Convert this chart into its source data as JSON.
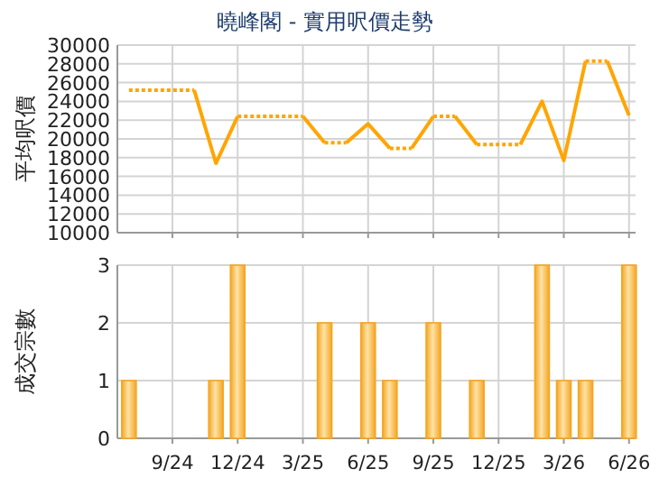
{
  "chart_data": [
    {
      "type": "line",
      "title": "曉峰閣 - 實用呎價走勢",
      "ylabel": "平均呎價",
      "xlim": [
        "2024-06-15",
        "2026-06-10"
      ],
      "ylim": [
        10000,
        30000
      ],
      "yticks": [
        10000,
        12000,
        14000,
        16000,
        18000,
        20000,
        22000,
        24000,
        26000,
        28000,
        30000
      ],
      "xticks": [
        {
          "value": "2024-09",
          "label": null
        },
        {
          "value": "2024-12",
          "label": null
        },
        {
          "value": "2025-03",
          "label": null
        },
        {
          "value": "2025-06",
          "label": null
        },
        {
          "value": "2025-09",
          "label": null
        },
        {
          "value": "2025-12",
          "label": null
        },
        {
          "value": "2026-03",
          "label": null
        },
        {
          "value": "2026-06",
          "label": null
        }
      ],
      "tick_labels": "y",
      "grid": true,
      "series": [
        {
          "color": "#ffa500",
          "line_style": "dotted",
          "x": [
            "2024-07",
            "2024-10"
          ],
          "values": [
            25200,
            25200
          ]
        },
        {
          "color": "#ffa500",
          "line_style": "solid",
          "x": [
            "2024-10",
            "2024-11",
            "2024-12"
          ],
          "values": [
            25200,
            17400,
            22400
          ]
        },
        {
          "color": "#ffa500",
          "line_style": "dotted",
          "x": [
            "2024-12",
            "2025-03"
          ],
          "values": [
            22400,
            22400
          ]
        },
        {
          "color": "#ffa500",
          "line_style": "solid",
          "x": [
            "2025-03",
            "2025-04"
          ],
          "values": [
            22400,
            19600
          ]
        },
        {
          "color": "#ffa500",
          "line_style": "dotted",
          "x": [
            "2025-04",
            "2025-05"
          ],
          "values": [
            19600,
            19600
          ]
        },
        {
          "color": "#ffa500",
          "line_style": "solid",
          "x": [
            "2025-05",
            "2025-06",
            "2025-07"
          ],
          "values": [
            19600,
            21600,
            19000
          ]
        },
        {
          "color": "#ffa500",
          "line_style": "dotted",
          "x": [
            "2025-07",
            "2025-08"
          ],
          "values": [
            19000,
            19000
          ]
        },
        {
          "color": "#ffa500",
          "line_style": "solid",
          "x": [
            "2025-08",
            "2025-09"
          ],
          "values": [
            19000,
            22400
          ]
        },
        {
          "color": "#ffa500",
          "line_style": "dotted",
          "x": [
            "2025-09",
            "2025-10"
          ],
          "values": [
            22400,
            22400
          ]
        },
        {
          "color": "#ffa500",
          "line_style": "solid",
          "x": [
            "2025-10",
            "2025-11"
          ],
          "values": [
            22400,
            19400
          ]
        },
        {
          "color": "#ffa500",
          "line_style": "dotted",
          "x": [
            "2025-11",
            "2026-01"
          ],
          "values": [
            19400,
            19400
          ]
        },
        {
          "color": "#ffa500",
          "line_style": "solid",
          "x": [
            "2026-01",
            "2026-02",
            "2026-03",
            "2026-04"
          ],
          "values": [
            19400,
            24000,
            17700,
            28300
          ]
        },
        {
          "color": "#ffa500",
          "line_style": "dotted",
          "x": [
            "2026-04",
            "2026-05"
          ],
          "values": [
            28300,
            28300
          ]
        },
        {
          "color": "#ffa500",
          "line_style": "solid",
          "x": [
            "2026-05",
            "2026-06"
          ],
          "values": [
            28300,
            22500
          ]
        }
      ]
    },
    {
      "type": "bar",
      "ylabel": "成交宗數",
      "xlim": [
        "2024-06-15",
        "2026-06-10"
      ],
      "ylim": [
        0,
        3
      ],
      "yticks": [
        0,
        1,
        2,
        3
      ],
      "xticks": [
        {
          "value": "2024-09",
          "label": "9/24"
        },
        {
          "value": "2024-12",
          "label": "12/24"
        },
        {
          "value": "2025-03",
          "label": "3/25"
        },
        {
          "value": "2025-06",
          "label": "6/25"
        },
        {
          "value": "2025-09",
          "label": "9/25"
        },
        {
          "value": "2025-12",
          "label": "12/25"
        },
        {
          "value": "2026-03",
          "label": "3/26"
        },
        {
          "value": "2026-06",
          "label": "6/26"
        }
      ],
      "grid": true,
      "color": "#f5a623",
      "x": [
        "2024-07",
        "2024-11",
        "2024-12",
        "2025-04",
        "2025-06",
        "2025-07",
        "2025-09",
        "2025-11",
        "2026-02",
        "2026-03",
        "2026-04",
        "2026-06"
      ],
      "values": [
        1,
        1,
        3,
        2,
        2,
        1,
        2,
        1,
        3,
        1,
        1,
        3
      ]
    }
  ]
}
